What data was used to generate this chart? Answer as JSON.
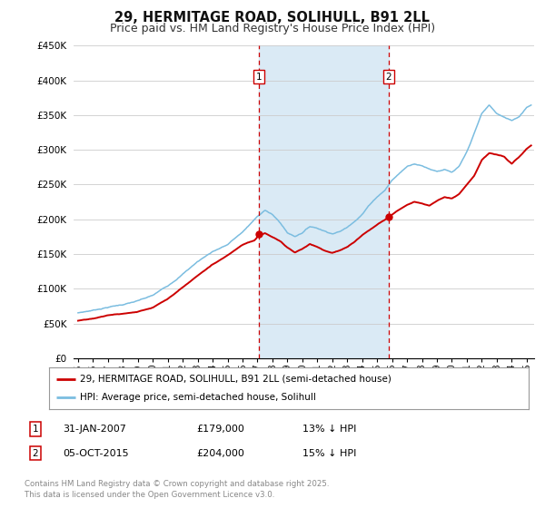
{
  "title": "29, HERMITAGE ROAD, SOLIHULL, B91 2LL",
  "subtitle": "Price paid vs. HM Land Registry's House Price Index (HPI)",
  "ylim": [
    0,
    450000
  ],
  "xlim_start": 1994.7,
  "xlim_end": 2025.5,
  "yticks": [
    0,
    50000,
    100000,
    150000,
    200000,
    250000,
    300000,
    350000,
    400000,
    450000
  ],
  "ytick_labels": [
    "£0",
    "£50K",
    "£100K",
    "£150K",
    "£200K",
    "£250K",
    "£300K",
    "£350K",
    "£400K",
    "£450K"
  ],
  "xticks": [
    1995,
    1996,
    1997,
    1998,
    1999,
    2000,
    2001,
    2002,
    2003,
    2004,
    2005,
    2006,
    2007,
    2008,
    2009,
    2010,
    2011,
    2012,
    2013,
    2014,
    2015,
    2016,
    2017,
    2018,
    2019,
    2020,
    2021,
    2022,
    2023,
    2024,
    2025
  ],
  "background_color": "#ffffff",
  "plot_bg_color": "#ffffff",
  "grid_color": "#cccccc",
  "hpi_color": "#7bbde0",
  "price_color": "#cc0000",
  "vline1_x": 2007.08,
  "vline2_x": 2015.76,
  "vline_color": "#cc0000",
  "shade_color": "#daeaf5",
  "marker1_x": 2007.08,
  "marker1_y": 179000,
  "marker2_x": 2015.76,
  "marker2_y": 204000,
  "legend_line1": "29, HERMITAGE ROAD, SOLIHULL, B91 2LL (semi-detached house)",
  "legend_line2": "HPI: Average price, semi-detached house, Solihull",
  "annotation1_date": "31-JAN-2007",
  "annotation1_price": "£179,000",
  "annotation1_hpi": "13% ↓ HPI",
  "annotation2_date": "05-OCT-2015",
  "annotation2_price": "£204,000",
  "annotation2_hpi": "15% ↓ HPI",
  "footer": "Contains HM Land Registry data © Crown copyright and database right 2025.\nThis data is licensed under the Open Government Licence v3.0.",
  "title_fontsize": 10.5,
  "subtitle_fontsize": 9.0,
  "hpi_keypoints": [
    [
      1995.0,
      65000
    ],
    [
      1996.0,
      69000
    ],
    [
      1997.0,
      74000
    ],
    [
      1998.0,
      78000
    ],
    [
      1999.0,
      83000
    ],
    [
      2000.0,
      90000
    ],
    [
      2001.0,
      104000
    ],
    [
      2002.0,
      122000
    ],
    [
      2003.0,
      140000
    ],
    [
      2004.0,
      155000
    ],
    [
      2005.0,
      165000
    ],
    [
      2006.0,
      183000
    ],
    [
      2007.0,
      205000
    ],
    [
      2007.5,
      215000
    ],
    [
      2008.0,
      208000
    ],
    [
      2008.5,
      197000
    ],
    [
      2009.0,
      182000
    ],
    [
      2009.5,
      177000
    ],
    [
      2010.0,
      183000
    ],
    [
      2010.5,
      192000
    ],
    [
      2011.0,
      190000
    ],
    [
      2011.5,
      186000
    ],
    [
      2012.0,
      183000
    ],
    [
      2012.5,
      186000
    ],
    [
      2013.0,
      192000
    ],
    [
      2013.5,
      202000
    ],
    [
      2014.0,
      212000
    ],
    [
      2014.5,
      226000
    ],
    [
      2015.0,
      238000
    ],
    [
      2015.5,
      247000
    ],
    [
      2016.0,
      262000
    ],
    [
      2016.5,
      272000
    ],
    [
      2017.0,
      282000
    ],
    [
      2017.5,
      287000
    ],
    [
      2018.0,
      284000
    ],
    [
      2018.5,
      280000
    ],
    [
      2019.0,
      277000
    ],
    [
      2019.5,
      280000
    ],
    [
      2020.0,
      275000
    ],
    [
      2020.5,
      283000
    ],
    [
      2021.0,
      303000
    ],
    [
      2021.5,
      330000
    ],
    [
      2022.0,
      358000
    ],
    [
      2022.5,
      370000
    ],
    [
      2023.0,
      358000
    ],
    [
      2023.5,
      352000
    ],
    [
      2024.0,
      348000
    ],
    [
      2024.5,
      354000
    ],
    [
      2025.0,
      368000
    ],
    [
      2025.3,
      372000
    ]
  ],
  "price_keypoints": [
    [
      1995.0,
      54000
    ],
    [
      1996.0,
      56000
    ],
    [
      1997.0,
      61000
    ],
    [
      1998.0,
      63000
    ],
    [
      1999.0,
      66000
    ],
    [
      2000.0,
      73000
    ],
    [
      2001.0,
      86000
    ],
    [
      2002.0,
      103000
    ],
    [
      2003.0,
      120000
    ],
    [
      2004.0,
      136000
    ],
    [
      2005.0,
      150000
    ],
    [
      2006.0,
      166000
    ],
    [
      2006.8,
      172000
    ],
    [
      2007.08,
      179000
    ],
    [
      2007.5,
      182000
    ],
    [
      2008.0,
      176000
    ],
    [
      2008.5,
      170000
    ],
    [
      2009.0,
      160000
    ],
    [
      2009.5,
      153000
    ],
    [
      2010.0,
      158000
    ],
    [
      2010.5,
      165000
    ],
    [
      2011.0,
      161000
    ],
    [
      2011.5,
      156000
    ],
    [
      2012.0,
      153000
    ],
    [
      2012.5,
      156000
    ],
    [
      2013.0,
      161000
    ],
    [
      2013.5,
      168000
    ],
    [
      2014.0,
      178000
    ],
    [
      2014.5,
      186000
    ],
    [
      2015.0,
      194000
    ],
    [
      2015.76,
      204000
    ],
    [
      2016.0,
      208000
    ],
    [
      2016.5,
      216000
    ],
    [
      2017.0,
      223000
    ],
    [
      2017.5,
      228000
    ],
    [
      2018.0,
      226000
    ],
    [
      2018.5,
      223000
    ],
    [
      2019.0,
      230000
    ],
    [
      2019.5,
      236000
    ],
    [
      2020.0,
      233000
    ],
    [
      2020.5,
      240000
    ],
    [
      2021.0,
      253000
    ],
    [
      2021.5,
      266000
    ],
    [
      2022.0,
      288000
    ],
    [
      2022.5,
      298000
    ],
    [
      2023.0,
      296000
    ],
    [
      2023.5,
      292000
    ],
    [
      2024.0,
      282000
    ],
    [
      2024.5,
      292000
    ],
    [
      2025.0,
      303000
    ],
    [
      2025.3,
      308000
    ]
  ]
}
